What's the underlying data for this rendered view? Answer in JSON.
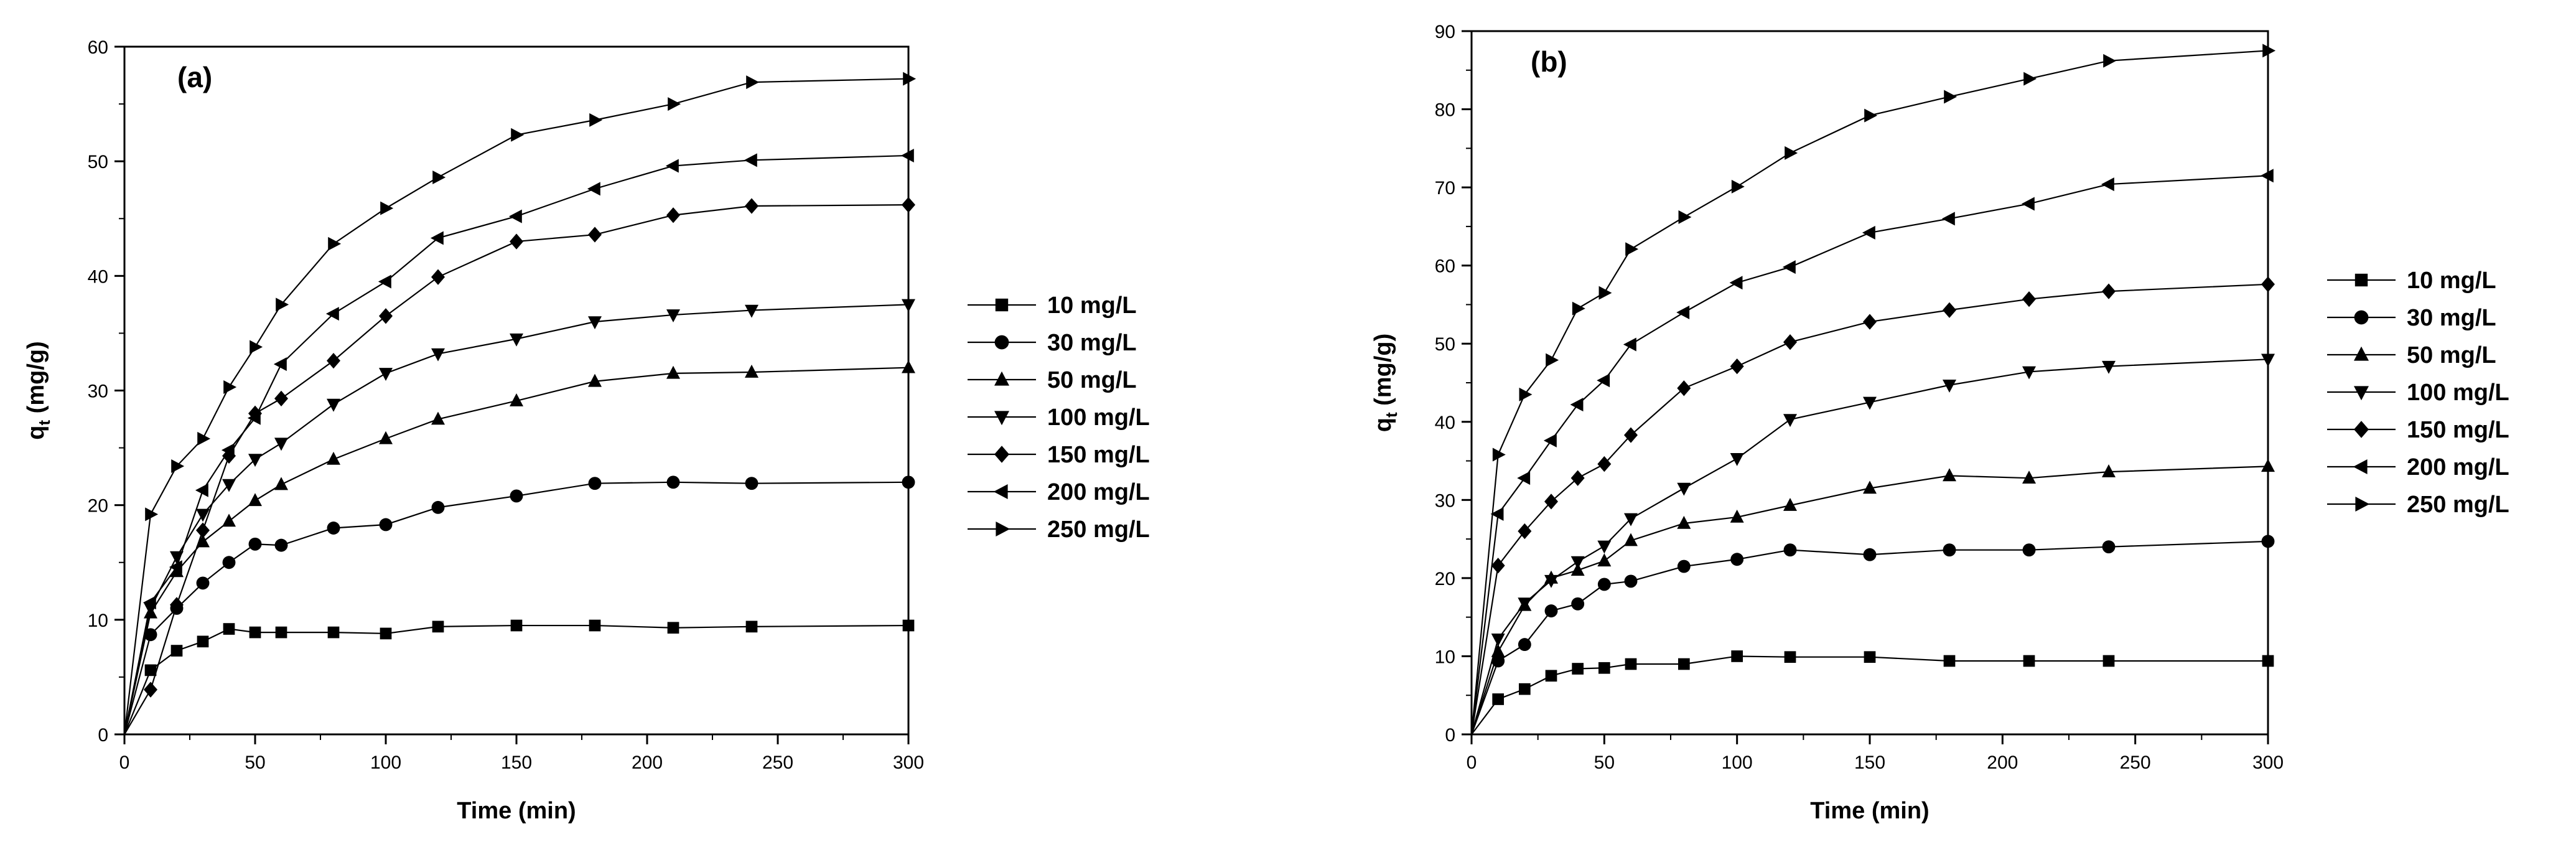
{
  "chart_data": [
    {
      "type": "line",
      "title": "(a)",
      "xlabel": "Time (min)",
      "ylabel": "q",
      "ylabel_sub": "t",
      "ylabel_unit": " (mg/g)",
      "xlim": [
        0,
        300
      ],
      "ylim": [
        0,
        60
      ],
      "xticks": [
        0,
        50,
        100,
        150,
        200,
        250,
        300
      ],
      "yticks": [
        0,
        10,
        20,
        30,
        40,
        50,
        60
      ],
      "legend_position": "right",
      "x": [
        0,
        10,
        20,
        30,
        40,
        50,
        60,
        80,
        100,
        120,
        150,
        180,
        210,
        240,
        300
      ],
      "series": [
        {
          "name": "10 mg/L",
          "marker": "square",
          "values": [
            0,
            5.6,
            7.3,
            8.1,
            9.2,
            8.9,
            8.9,
            8.9,
            8.8,
            9.4,
            9.5,
            9.5,
            9.3,
            9.4,
            9.5
          ]
        },
        {
          "name": "30 mg/L",
          "marker": "circle",
          "values": [
            0,
            8.7,
            11.0,
            13.2,
            15.0,
            16.6,
            16.5,
            18.0,
            18.3,
            19.8,
            20.8,
            21.9,
            22.0,
            21.9,
            22.0
          ]
        },
        {
          "name": "50 mg/L",
          "marker": "triangle-up",
          "values": [
            0,
            10.6,
            14.2,
            16.8,
            18.6,
            20.4,
            21.8,
            24.0,
            25.8,
            27.5,
            29.1,
            30.8,
            31.5,
            31.6,
            32.0
          ]
        },
        {
          "name": "100 mg/L",
          "marker": "triangle-down",
          "values": [
            0,
            11.0,
            15.5,
            19.2,
            21.8,
            24.0,
            25.4,
            28.8,
            31.5,
            33.2,
            34.5,
            36.0,
            36.6,
            37.0,
            37.5
          ]
        },
        {
          "name": "150 mg/L",
          "marker": "diamond",
          "values": [
            0,
            3.9,
            11.3,
            17.8,
            24.3,
            28.0,
            29.3,
            32.6,
            36.5,
            39.9,
            43.0,
            43.6,
            45.3,
            46.1,
            46.2
          ]
        },
        {
          "name": "200 mg/L",
          "marker": "triangle-left",
          "values": [
            0,
            11.5,
            14.6,
            21.3,
            24.8,
            27.6,
            32.3,
            36.7,
            39.5,
            43.3,
            45.2,
            47.6,
            49.6,
            50.1,
            50.5
          ]
        },
        {
          "name": "250 mg/L",
          "marker": "triangle-right",
          "values": [
            0,
            19.2,
            23.4,
            25.8,
            30.3,
            33.8,
            37.5,
            42.8,
            45.9,
            48.6,
            52.3,
            53.6,
            55.0,
            56.9,
            57.2
          ]
        }
      ]
    },
    {
      "type": "line",
      "title": "(b)",
      "xlabel": "Time (min)",
      "ylabel": "q",
      "ylabel_sub": "t",
      "ylabel_unit": " (mg/g)",
      "xlim": [
        0,
        300
      ],
      "ylim": [
        0,
        90
      ],
      "xticks": [
        0,
        50,
        100,
        150,
        200,
        250,
        300
      ],
      "yticks": [
        0,
        10,
        20,
        30,
        40,
        50,
        60,
        70,
        80,
        90
      ],
      "legend_position": "right",
      "x": [
        0,
        10,
        20,
        30,
        40,
        50,
        60,
        80,
        100,
        120,
        150,
        180,
        210,
        240,
        300
      ],
      "series": [
        {
          "name": "10 mg/L",
          "marker": "square",
          "values": [
            0,
            4.5,
            5.8,
            7.5,
            8.4,
            8.5,
            9.0,
            9.0,
            10.0,
            9.9,
            9.9,
            9.4,
            9.4,
            9.4,
            9.4
          ]
        },
        {
          "name": "30 mg/L",
          "marker": "circle",
          "values": [
            0,
            9.4,
            11.5,
            15.8,
            16.7,
            19.2,
            19.6,
            21.5,
            22.4,
            23.6,
            23.0,
            23.6,
            23.6,
            24.0,
            24.7
          ]
        },
        {
          "name": "50 mg/L",
          "marker": "triangle-up",
          "values": [
            0,
            10.6,
            16.5,
            20.0,
            21.0,
            22.2,
            24.8,
            27.0,
            27.8,
            29.3,
            31.5,
            33.1,
            32.8,
            33.6,
            34.3
          ]
        },
        {
          "name": "100 mg/L",
          "marker": "triangle-down",
          "values": [
            0,
            12.2,
            16.8,
            19.7,
            22.1,
            24.1,
            27.6,
            31.5,
            35.3,
            40.3,
            42.5,
            44.7,
            46.4,
            47.1,
            48.0
          ]
        },
        {
          "name": "150 mg/L",
          "marker": "diamond",
          "values": [
            0,
            21.6,
            26.0,
            29.8,
            32.8,
            34.6,
            38.3,
            44.3,
            47.1,
            50.2,
            52.8,
            54.3,
            55.7,
            56.7,
            57.6
          ]
        },
        {
          "name": "200 mg/L",
          "marker": "triangle-left",
          "values": [
            0,
            28.2,
            32.8,
            37.6,
            42.2,
            45.3,
            49.9,
            54.0,
            57.8,
            59.8,
            64.2,
            66.0,
            67.9,
            70.4,
            71.5
          ]
        },
        {
          "name": "250 mg/L",
          "marker": "triangle-right",
          "values": [
            0,
            35.8,
            43.5,
            47.9,
            54.5,
            56.5,
            62.1,
            66.2,
            70.1,
            74.4,
            79.2,
            81.6,
            83.9,
            86.2,
            87.5
          ]
        }
      ]
    }
  ]
}
